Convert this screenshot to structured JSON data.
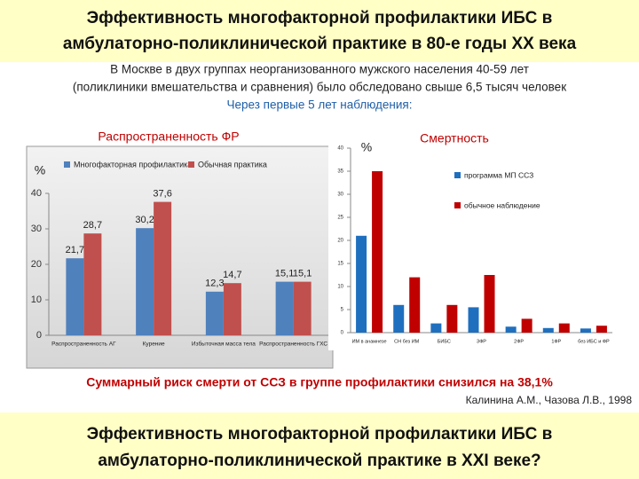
{
  "header": {
    "title_lines": [
      "Эффективность многофакторной профилактики  ИБС в",
      "амбулаторно-поликлинической практике  в 80-е годы XX века"
    ]
  },
  "intro": {
    "lines": [
      "В Москве в двух группах неорганизованного мужского населения 40-59 лет",
      "(поликлиники вмешательства и сравнения) было обследовано свыше 6,5 тысяч человек",
      "Через первые 5 лет наблюдения:"
    ]
  },
  "chart_data": [
    {
      "type": "bar",
      "title": "Распространенность ФР",
      "y_label": "%",
      "categories": [
        "Распространенность АГ",
        "Курение",
        "Избыточная масса тела",
        "Распространенность ГХС"
      ],
      "series": [
        {
          "name": "Многофакторная профилактика",
          "color": "#4f81bd",
          "values": [
            21.7,
            30.2,
            12.3,
            15.1
          ],
          "value_labels": [
            "21,7",
            "30,2",
            "12,3",
            "15,1"
          ]
        },
        {
          "name": "Обычная практика",
          "color": "#c0504d",
          "values": [
            28.7,
            37.6,
            14.7,
            15.1
          ],
          "value_labels": [
            "28,7",
            "37,6",
            "14,7",
            "15,1"
          ]
        }
      ],
      "ylim": [
        0,
        40
      ],
      "yticks": [
        0,
        10,
        20,
        30,
        40
      ],
      "legend": "top"
    },
    {
      "type": "bar",
      "title": "Смертность",
      "y_label": "%",
      "categories": [
        "ИМ в анамнезе",
        "СН без ИМ",
        "БИБС",
        "3ФР",
        "2ФР",
        "1ФР",
        "без ИБС и ФР"
      ],
      "series": [
        {
          "name": "программа МП ССЗ",
          "color": "#1f6fbf",
          "values": [
            21,
            6,
            2,
            5.5,
            1.3,
            1,
            0.9
          ]
        },
        {
          "name": "обычное наблюдение",
          "color": "#c00000",
          "values": [
            35,
            12,
            6,
            12.5,
            3,
            2,
            1.5
          ]
        }
      ],
      "ylim": [
        0,
        40
      ],
      "yticks": [
        0,
        5,
        10,
        15,
        20,
        25,
        30,
        35,
        40
      ],
      "legend": "right"
    }
  ],
  "conclusion": "Суммарный риск смерти от ССЗ в группе профилактики снизился на 38,1%",
  "citation": "Калинина А.М., Чазова Л.В., 1998",
  "footer": {
    "title_lines": [
      "Эффективность многофакторной профилактики  ИБС в",
      "амбулаторно-поликлинической практике  в XXI веке?"
    ]
  }
}
